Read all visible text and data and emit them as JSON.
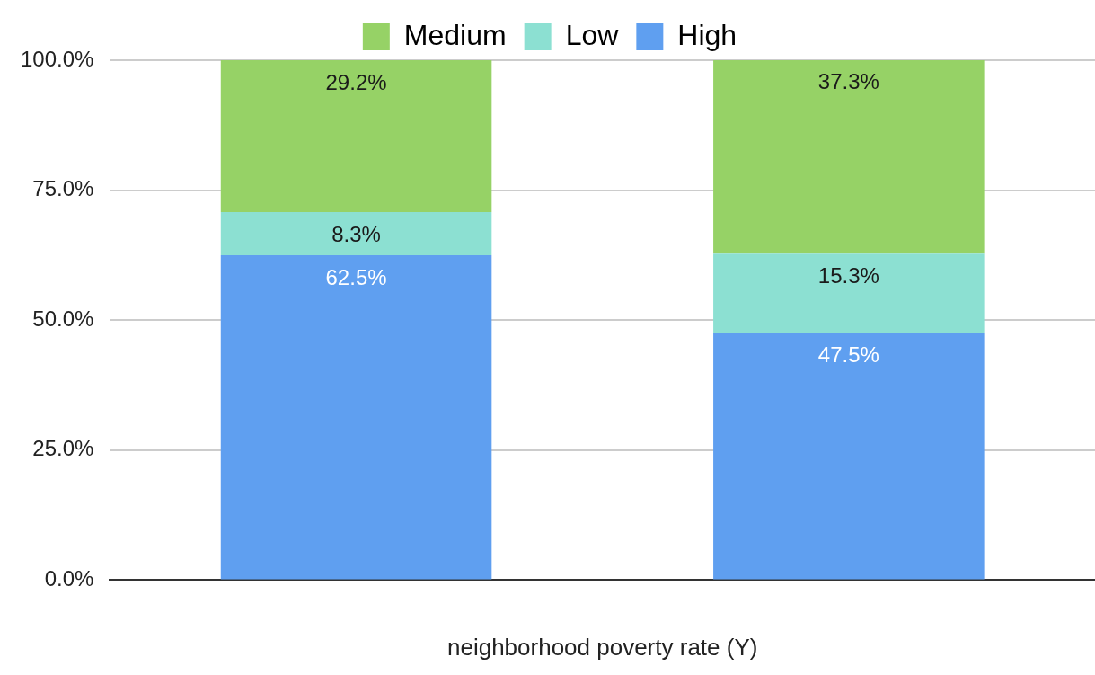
{
  "chart_data": {
    "type": "bar",
    "stacked": true,
    "xlabel": "neighborhood poverty rate (Y)",
    "categories": [
      null,
      null
    ],
    "series": [
      {
        "name": "High",
        "color": "#5f9ff0",
        "values": [
          62.5,
          47.5
        ],
        "value_labels": [
          "62.5%",
          "47.5%"
        ]
      },
      {
        "name": "Low",
        "color": "#8ce0d2",
        "values": [
          8.3,
          15.3
        ],
        "value_labels": [
          "8.3%",
          "15.3%"
        ]
      },
      {
        "name": "Medium",
        "color": "#96d266",
        "values": [
          29.2,
          37.3
        ],
        "value_labels": [
          "29.2%",
          "37.3%"
        ]
      }
    ],
    "ylim": [
      0,
      100
    ],
    "yticks": [
      {
        "value": 0,
        "label": "0.0%"
      },
      {
        "value": 25,
        "label": "25.0%"
      },
      {
        "value": 50,
        "label": "50.0%"
      },
      {
        "value": 75,
        "label": "75.0%"
      },
      {
        "value": 100,
        "label": "100.0%"
      }
    ],
    "grid": "y",
    "legend": "top"
  }
}
